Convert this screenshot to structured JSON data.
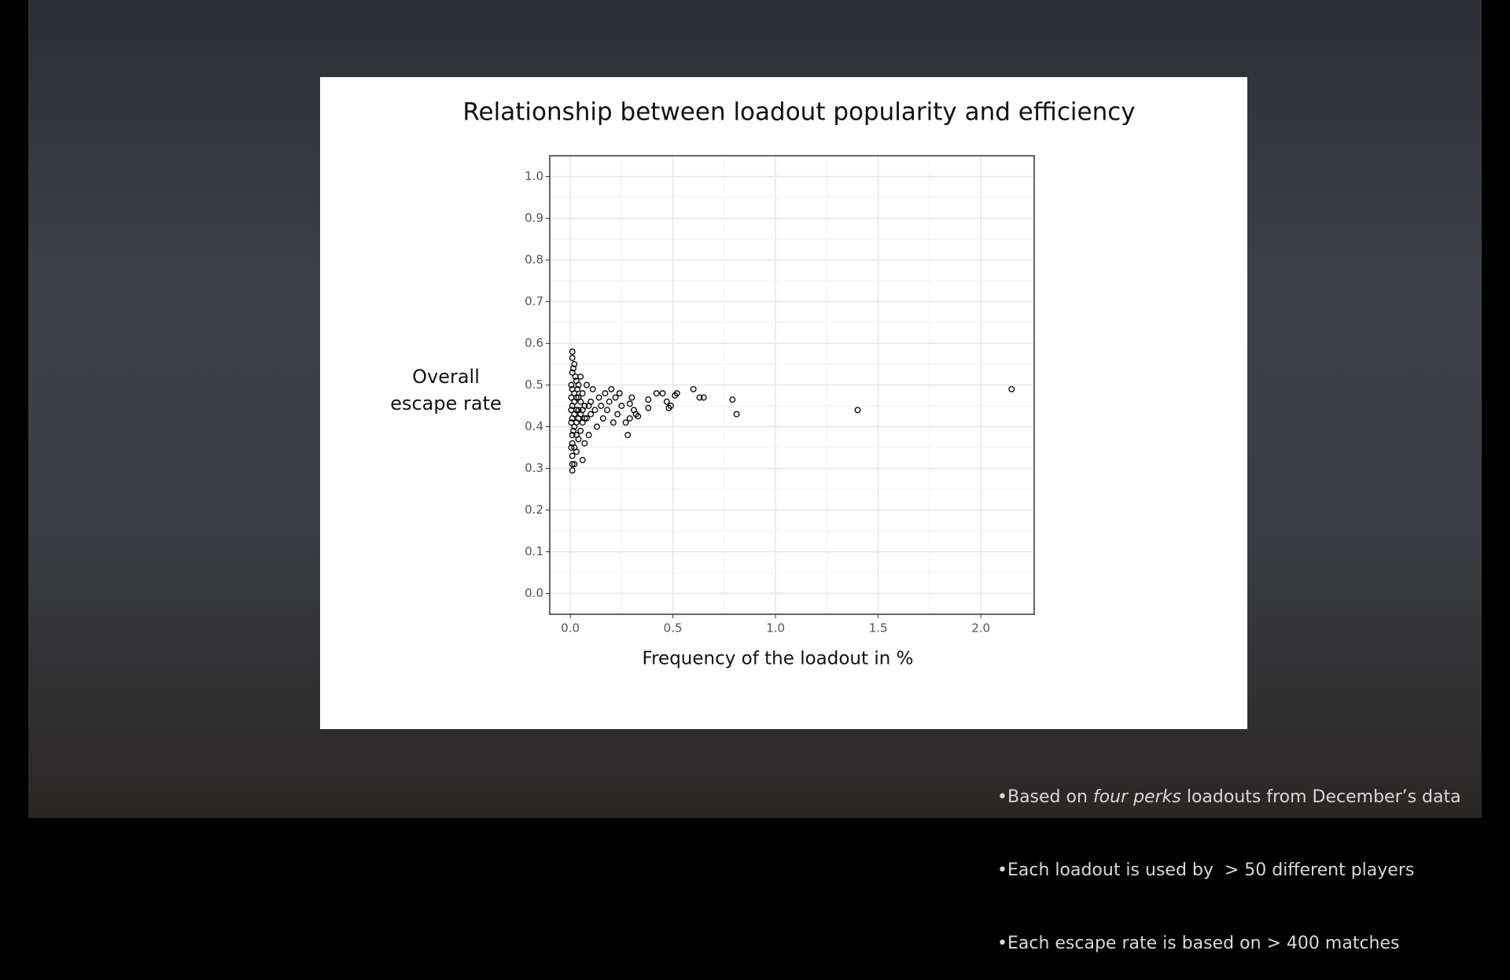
{
  "chart_data": {
    "type": "scatter",
    "title": "Relationship between loadout popularity and efficiency",
    "xlabel": "Frequency of the loadout in %",
    "ylabel": "Overall escape rate",
    "xlim": [
      -0.1,
      2.26
    ],
    "ylim": [
      -0.05,
      1.05
    ],
    "xticks": [
      {
        "value": 0,
        "label": "0.0"
      },
      0.5,
      {
        "value": 1,
        "label": "1.0"
      },
      1.5,
      {
        "value": 2,
        "label": "2.0"
      }
    ],
    "yticks": [
      {
        "value": 0,
        "label": "0.0"
      },
      0.1,
      0.2,
      0.3,
      0.4,
      0.5,
      0.6,
      0.7,
      0.8,
      0.9,
      {
        "value": 1,
        "label": "1.0"
      }
    ],
    "grid": true,
    "color": "#000000",
    "x": [
      2.15,
      1.4,
      0.81,
      0.79,
      0.65,
      0.63,
      0.6,
      0.52,
      0.51,
      0.49,
      0.48,
      0.47,
      0.45,
      0.42,
      0.38,
      0.38,
      0.33,
      0.32,
      0.31,
      0.29,
      0.28,
      0.29,
      0.3,
      0.27,
      0.25,
      0.24,
      0.23,
      0.22,
      0.21,
      0.2,
      0.19,
      0.18,
      0.17,
      0.16,
      0.15,
      0.14,
      0.13,
      0.12,
      0.11,
      0.1,
      0.1,
      0.09,
      0.08,
      0.08,
      0.07,
      0.07,
      0.06,
      0.06,
      0.05,
      0.05,
      0.04,
      0.04,
      0.03,
      0.03,
      0.03,
      0.02,
      0.02,
      0.02,
      0.02,
      0.01,
      0.01,
      0.01,
      0.01,
      0.01,
      0.01,
      0.01,
      0.01,
      0.01,
      0.01,
      0.005,
      0.005,
      0.005,
      0.005,
      0.005,
      0.02,
      0.02,
      0.02,
      0.03,
      0.03,
      0.03,
      0.04,
      0.04,
      0.04,
      0.05,
      0.05,
      0.06,
      0.06,
      0.07,
      0.09,
      0.01,
      0.015,
      0.025,
      0.015,
      0.035
    ],
    "y": [
      0.49,
      0.44,
      0.43,
      0.465,
      0.47,
      0.47,
      0.49,
      0.48,
      0.475,
      0.45,
      0.445,
      0.46,
      0.48,
      0.48,
      0.445,
      0.465,
      0.425,
      0.43,
      0.44,
      0.42,
      0.38,
      0.455,
      0.47,
      0.41,
      0.45,
      0.48,
      0.43,
      0.47,
      0.41,
      0.49,
      0.46,
      0.44,
      0.48,
      0.42,
      0.45,
      0.47,
      0.4,
      0.44,
      0.49,
      0.43,
      0.46,
      0.38,
      0.42,
      0.5,
      0.36,
      0.45,
      0.32,
      0.41,
      0.39,
      0.52,
      0.37,
      0.47,
      0.34,
      0.44,
      0.51,
      0.31,
      0.4,
      0.48,
      0.55,
      0.295,
      0.33,
      0.36,
      0.38,
      0.42,
      0.45,
      0.49,
      0.53,
      0.565,
      0.58,
      0.35,
      0.41,
      0.44,
      0.47,
      0.5,
      0.35,
      0.43,
      0.46,
      0.38,
      0.41,
      0.47,
      0.42,
      0.44,
      0.5,
      0.43,
      0.46,
      0.44,
      0.48,
      0.42,
      0.45,
      0.31,
      0.54,
      0.52,
      0.39,
      0.49
    ]
  },
  "notes": [
    [
      "•Based on ",
      "four perks",
      " loadouts from December’s data"
    ],
    [
      "•Each loadout is used by  > 50 different players"
    ],
    [
      "•Each escape rate is based on > 400 matches"
    ]
  ]
}
